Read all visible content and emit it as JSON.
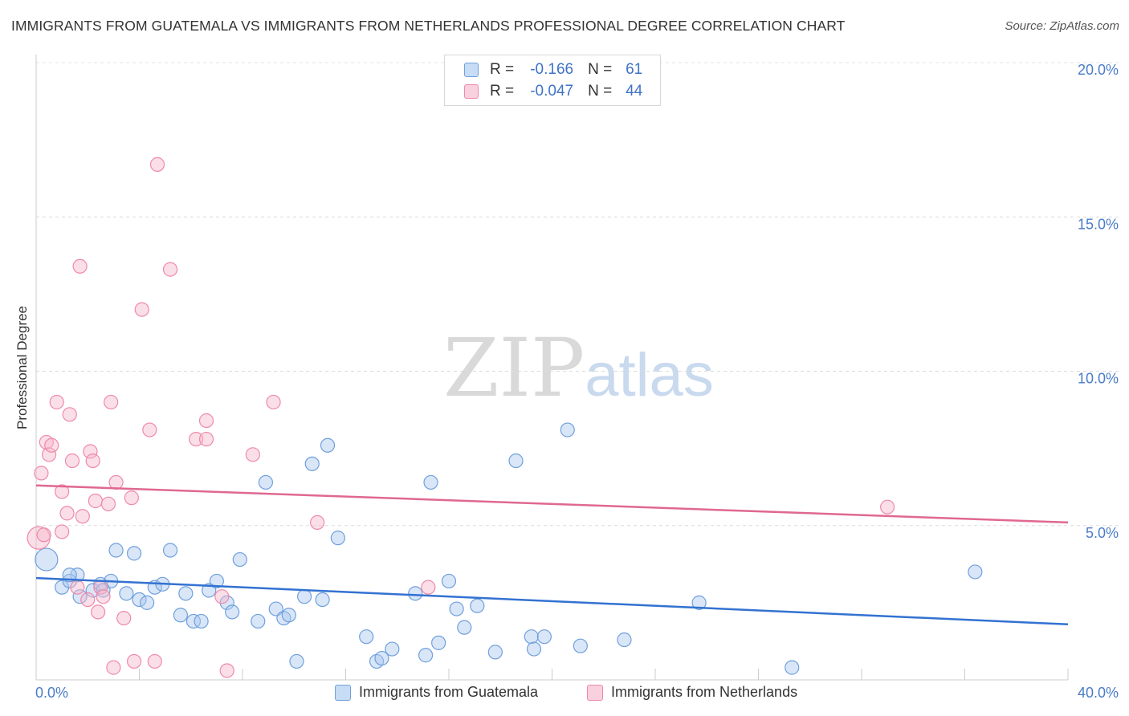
{
  "title": "IMMIGRANTS FROM GUATEMALA VS IMMIGRANTS FROM NETHERLANDS PROFESSIONAL DEGREE CORRELATION CHART",
  "source": "Source: ZipAtlas.com",
  "watermark": {
    "zip": "ZIP",
    "atlas": "atlas"
  },
  "legend": {
    "rows": [
      {
        "r_label": "R =",
        "r_value": "-0.166",
        "n_label": "N =",
        "n_value": "61",
        "color": "#6fa0dc"
      },
      {
        "r_label": "R =",
        "r_value": "-0.047",
        "n_label": "N =",
        "n_value": "44",
        "color": "#ee8aa8"
      }
    ]
  },
  "bottom_legend": [
    {
      "label": "Immigrants from Guatemala",
      "color": "#6fa0dc"
    },
    {
      "label": "Immigrants from Netherlands",
      "color": "#ee8aa8"
    }
  ],
  "chart_data": {
    "type": "scatter",
    "title": "IMMIGRANTS FROM GUATEMALA VS IMMIGRANTS FROM NETHERLANDS PROFESSIONAL DEGREE CORRELATION CHART",
    "xlabel": "",
    "ylabel": "Professional Degree",
    "xlim": [
      0,
      40
    ],
    "ylim": [
      0,
      20
    ],
    "x_tick_labels": [
      "0.0%",
      "40.0%"
    ],
    "y_ticks": [
      5,
      10,
      15,
      20
    ],
    "y_tick_labels": [
      "5.0%",
      "10.0%",
      "15.0%",
      "20.0%"
    ],
    "grid": true,
    "legend_position": "top-center",
    "series": [
      {
        "name": "Immigrants from Guatemala",
        "color": "#6fa0dc",
        "trend": [
          [
            0,
            3.3
          ],
          [
            40,
            1.8
          ]
        ],
        "points": [
          [
            0.4,
            3.9
          ],
          [
            1.6,
            3.4
          ],
          [
            1.0,
            3.0
          ],
          [
            1.3,
            3.2
          ],
          [
            1.7,
            2.7
          ],
          [
            2.2,
            2.9
          ],
          [
            2.5,
            3.1
          ],
          [
            2.9,
            3.2
          ],
          [
            3.1,
            4.2
          ],
          [
            3.5,
            2.8
          ],
          [
            3.8,
            4.1
          ],
          [
            4.0,
            2.6
          ],
          [
            4.3,
            2.5
          ],
          [
            4.6,
            3.0
          ],
          [
            4.9,
            3.1
          ],
          [
            5.2,
            4.2
          ],
          [
            5.6,
            2.1
          ],
          [
            5.8,
            2.8
          ],
          [
            6.1,
            1.9
          ],
          [
            6.4,
            1.9
          ],
          [
            6.7,
            2.9
          ],
          [
            7.0,
            3.2
          ],
          [
            7.4,
            2.5
          ],
          [
            7.6,
            2.2
          ],
          [
            7.9,
            3.9
          ],
          [
            8.6,
            1.9
          ],
          [
            8.9,
            6.4
          ],
          [
            9.3,
            2.3
          ],
          [
            9.6,
            2.0
          ],
          [
            9.8,
            2.1
          ],
          [
            10.1,
            0.6
          ],
          [
            10.4,
            2.7
          ],
          [
            10.7,
            7.0
          ],
          [
            11.1,
            2.6
          ],
          [
            11.3,
            7.6
          ],
          [
            11.7,
            4.6
          ],
          [
            12.8,
            1.4
          ],
          [
            13.2,
            0.6
          ],
          [
            13.4,
            0.7
          ],
          [
            13.8,
            1.0
          ],
          [
            14.7,
            2.8
          ],
          [
            15.1,
            0.8
          ],
          [
            15.3,
            6.4
          ],
          [
            15.6,
            1.2
          ],
          [
            16.0,
            3.2
          ],
          [
            16.3,
            2.3
          ],
          [
            16.6,
            1.7
          ],
          [
            17.1,
            2.4
          ],
          [
            17.8,
            0.9
          ],
          [
            18.6,
            7.1
          ],
          [
            19.2,
            1.4
          ],
          [
            19.3,
            1.0
          ],
          [
            19.7,
            1.4
          ],
          [
            20.6,
            8.1
          ],
          [
            21.1,
            1.1
          ],
          [
            22.8,
            1.3
          ],
          [
            25.7,
            2.5
          ],
          [
            29.3,
            0.4
          ],
          [
            36.4,
            3.5
          ],
          [
            1.3,
            3.4
          ],
          [
            2.6,
            2.9
          ]
        ]
      },
      {
        "name": "Immigrants from Netherlands",
        "color": "#ee8aa8",
        "trend": [
          [
            0,
            6.3
          ],
          [
            40,
            5.1
          ]
        ],
        "points": [
          [
            0.1,
            4.6
          ],
          [
            0.2,
            6.7
          ],
          [
            0.4,
            7.7
          ],
          [
            0.5,
            7.3
          ],
          [
            0.6,
            7.6
          ],
          [
            0.8,
            9.0
          ],
          [
            1.0,
            6.1
          ],
          [
            1.0,
            4.8
          ],
          [
            1.2,
            5.4
          ],
          [
            1.3,
            8.6
          ],
          [
            1.4,
            7.1
          ],
          [
            1.6,
            3.0
          ],
          [
            1.7,
            13.4
          ],
          [
            1.8,
            5.3
          ],
          [
            2.0,
            2.6
          ],
          [
            2.1,
            7.4
          ],
          [
            2.2,
            7.1
          ],
          [
            2.3,
            5.8
          ],
          [
            2.4,
            2.2
          ],
          [
            2.5,
            3.0
          ],
          [
            2.6,
            2.7
          ],
          [
            2.8,
            5.7
          ],
          [
            2.9,
            9.0
          ],
          [
            3.0,
            0.4
          ],
          [
            3.1,
            6.4
          ],
          [
            3.4,
            2.0
          ],
          [
            3.7,
            5.9
          ],
          [
            3.8,
            0.6
          ],
          [
            4.1,
            12.0
          ],
          [
            4.4,
            8.1
          ],
          [
            4.6,
            0.6
          ],
          [
            4.7,
            16.7
          ],
          [
            5.2,
            13.3
          ],
          [
            6.2,
            7.8
          ],
          [
            6.6,
            8.4
          ],
          [
            6.6,
            7.8
          ],
          [
            7.2,
            2.7
          ],
          [
            7.4,
            0.3
          ],
          [
            8.4,
            7.3
          ],
          [
            9.2,
            9.0
          ],
          [
            10.9,
            5.1
          ],
          [
            15.2,
            3.0
          ],
          [
            33.0,
            5.6
          ],
          [
            0.3,
            4.7
          ]
        ]
      }
    ]
  }
}
